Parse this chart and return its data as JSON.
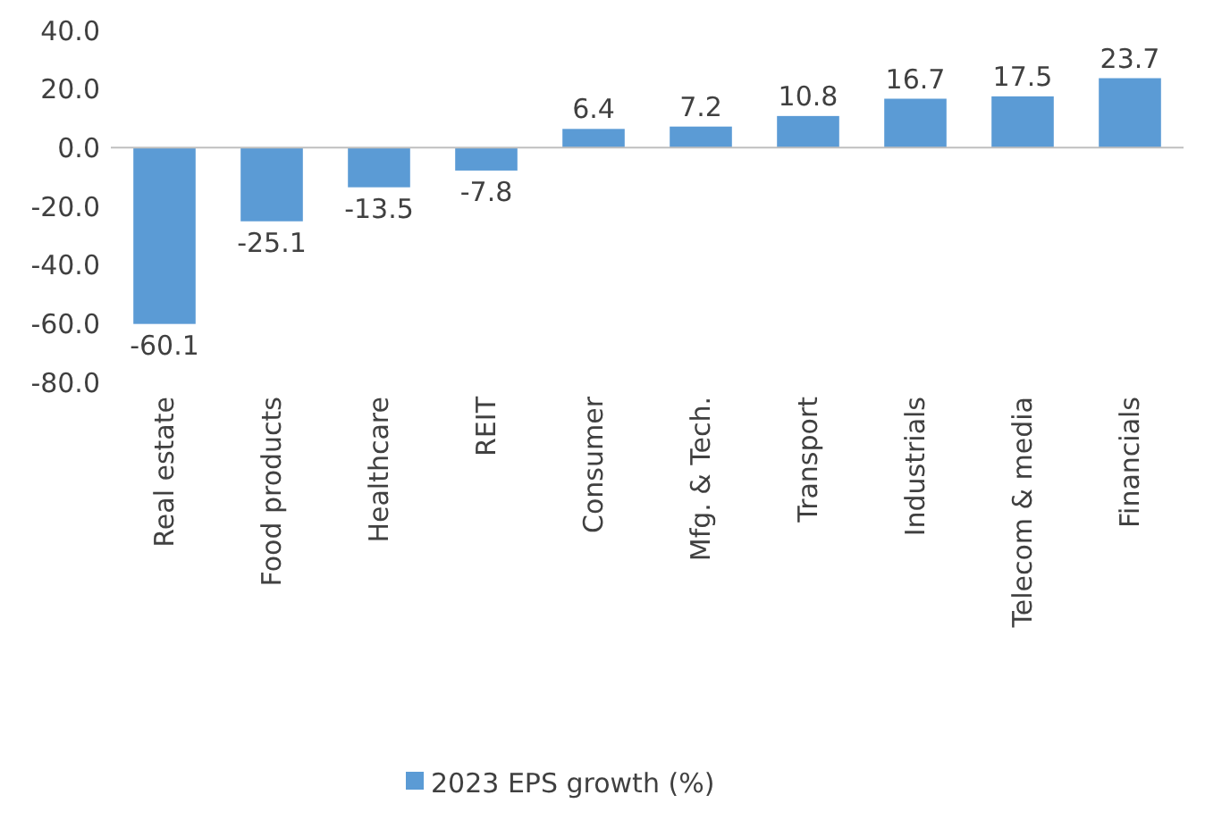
{
  "chart_data": {
    "type": "bar",
    "categories": [
      "Real estate",
      "Food products",
      "Healthcare",
      "REIT",
      "Consumer",
      "Mfg. & Tech.",
      "Transport",
      "Industrials",
      "Telecom & media",
      "Financials"
    ],
    "series": [
      {
        "name": "2023 EPS growth (%)",
        "color": "#5b9bd5",
        "values": [
          -60.1,
          -25.1,
          -13.5,
          -7.8,
          6.4,
          7.2,
          10.8,
          16.7,
          17.5,
          23.7
        ]
      }
    ],
    "ylim": [
      -80,
      40
    ],
    "yticks": [
      {
        "value": -80,
        "label": "-80.0"
      },
      {
        "value": -60,
        "label": "-60.0"
      },
      {
        "value": -40,
        "label": "-40.0"
      },
      {
        "value": -20,
        "label": "-20.0"
      },
      {
        "value": 0,
        "label": "0.0"
      },
      {
        "value": 20,
        "label": "20.0"
      },
      {
        "value": 40,
        "label": "40.0"
      }
    ],
    "data_labels": true,
    "legend": "bottom"
  }
}
